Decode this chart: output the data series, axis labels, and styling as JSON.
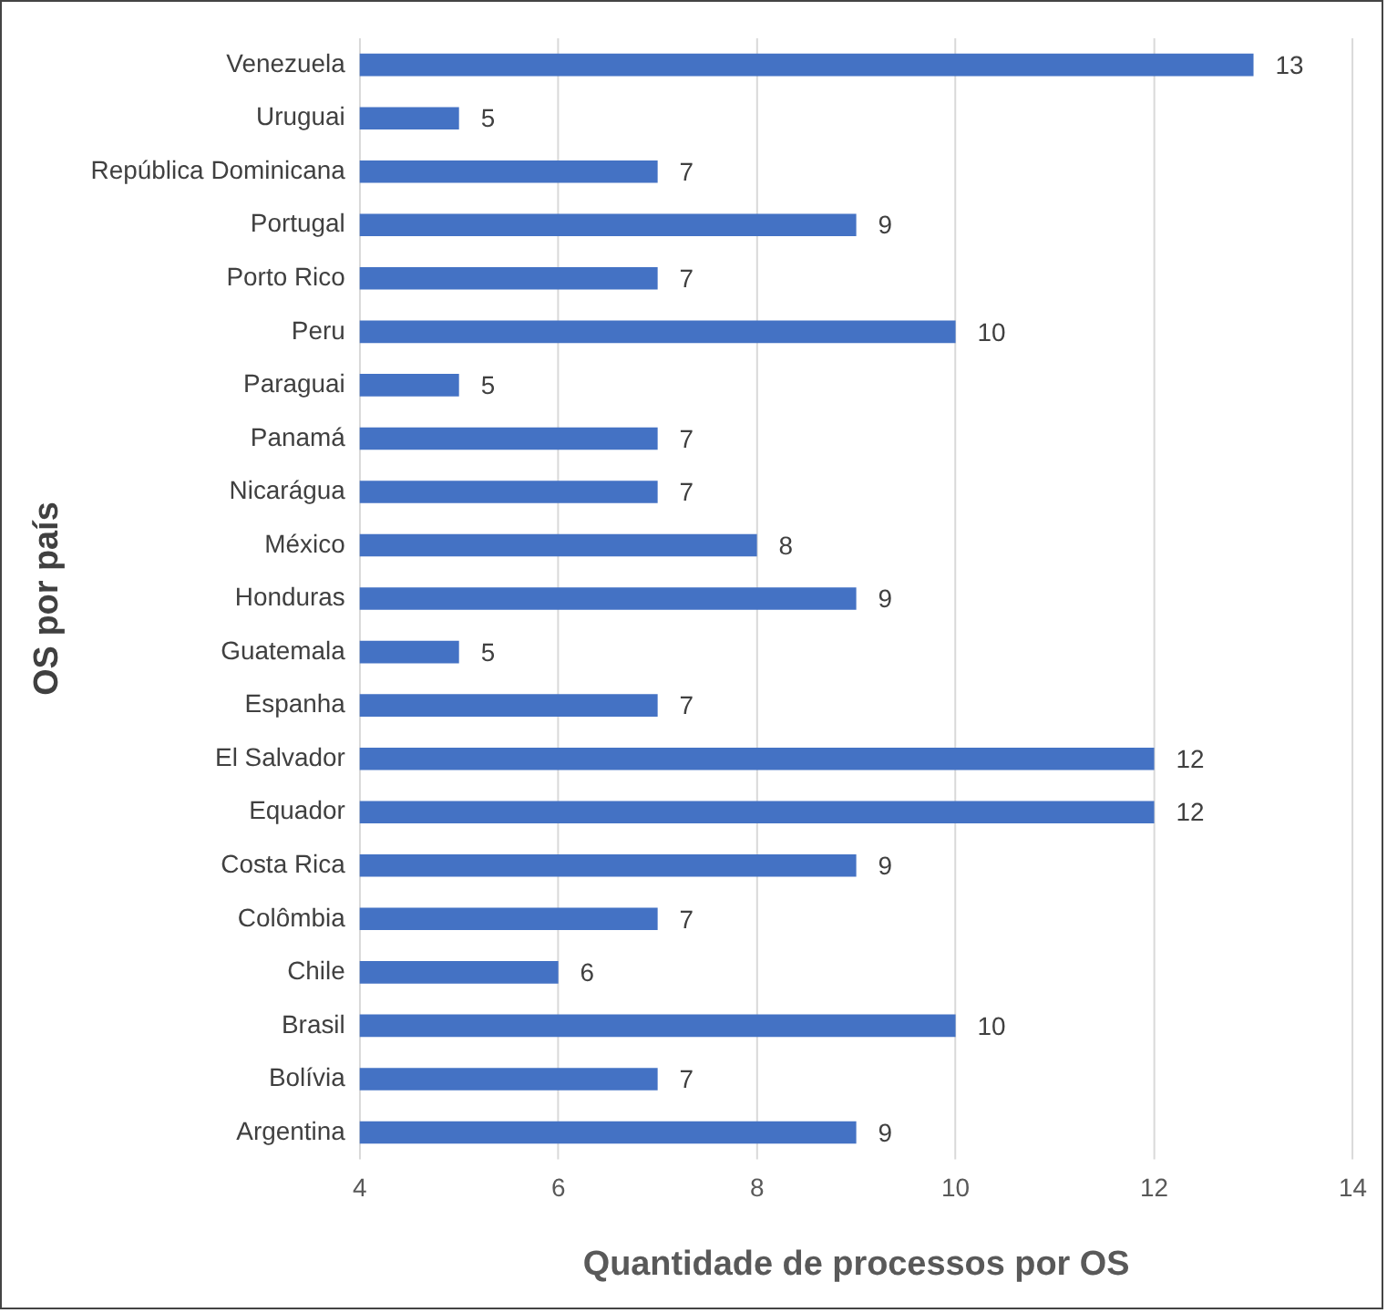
{
  "chart_data": {
    "type": "bar",
    "orientation": "horizontal",
    "xlabel": "Quantidade de processos por OS",
    "ylabel": "OS por país",
    "categories": [
      "Venezuela",
      "Uruguai",
      "República Dominicana",
      "Portugal",
      "Porto Rico",
      "Peru",
      "Paraguai",
      "Panamá",
      "Nicarágua",
      "México",
      "Honduras",
      "Guatemala",
      "Espanha",
      "El Salvador",
      "Equador",
      "Costa Rica",
      "Colômbia",
      "Chile",
      "Brasil",
      "Bolívia",
      "Argentina"
    ],
    "values": [
      13,
      5,
      7,
      9,
      7,
      10,
      5,
      7,
      7,
      8,
      9,
      5,
      7,
      12,
      12,
      9,
      7,
      6,
      10,
      7,
      9
    ],
    "color": "#4472c4",
    "xlim": [
      4,
      14
    ],
    "xticks": [
      4,
      6,
      8,
      10,
      12,
      14
    ],
    "grid": "x",
    "data_labels": true,
    "legend": false
  }
}
